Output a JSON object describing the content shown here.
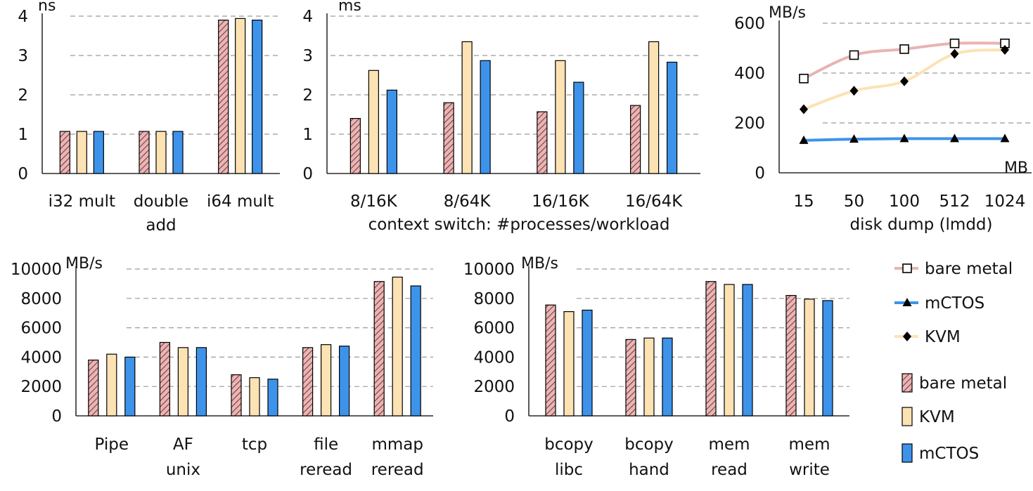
{
  "colors": {
    "bare_metal_bar": "#e9b5b5",
    "bare_metal_hatch": "#7a3b3b",
    "kvm_bar": "#fde2b4",
    "mctos_bar": "#3d93ea",
    "bare_metal_line": "#e8b4b4",
    "mctos_line": "#3d93ea",
    "kvm_line": "#fde2b4"
  },
  "legend": {
    "line_items": [
      {
        "label": "bare metal",
        "marker": "open-square",
        "color": "#e8b4b4"
      },
      {
        "label": "mCTOS",
        "marker": "triangle",
        "color": "#3d93ea"
      },
      {
        "label": "KVM",
        "marker": "diamond",
        "color": "#fde2b4"
      }
    ],
    "bar_items": [
      {
        "label": "bare metal",
        "style": "hatched"
      },
      {
        "label": "KVM",
        "style": "solid"
      },
      {
        "label": "mCTOS",
        "style": "solid"
      }
    ]
  },
  "chart_data": [
    {
      "type": "bar",
      "ylabel": "ns",
      "ylim": [
        0,
        4
      ],
      "yticks": [
        "0",
        "1",
        "2",
        "3",
        "4"
      ],
      "categories": [
        [
          "i32 mult"
        ],
        [
          "double",
          "add"
        ],
        [
          "i64 mult"
        ]
      ],
      "series": [
        {
          "values": [
            1.07,
            1.07,
            3.9
          ]
        },
        {
          "values": [
            1.07,
            1.07,
            3.94
          ]
        },
        {
          "values": [
            1.07,
            1.07,
            3.9
          ]
        }
      ],
      "grid": true
    },
    {
      "type": "bar",
      "ylabel": "ms",
      "xlabel": "context switch: #processes/workload",
      "ylim": [
        0,
        4
      ],
      "yticks": [
        "0",
        "1",
        "2",
        "3",
        "4"
      ],
      "categories": [
        [
          "8/16K"
        ],
        [
          "8/64K"
        ],
        [
          "16/16K"
        ],
        [
          "16/64K"
        ]
      ],
      "series": [
        {
          "values": [
            1.4,
            1.8,
            1.57,
            1.73
          ]
        },
        {
          "values": [
            2.62,
            3.35,
            2.87,
            3.35
          ]
        },
        {
          "values": [
            2.12,
            2.87,
            2.32,
            2.83
          ]
        }
      ],
      "grid": true
    },
    {
      "type": "line",
      "ylabel": "MB/s",
      "xlabel": "disk dump (lmdd)",
      "xunit": "MB",
      "ylim": [
        0,
        600
      ],
      "yticks": [
        "0",
        "200",
        "400",
        "600"
      ],
      "categories": [
        "15",
        "50",
        "100",
        "512",
        "1024"
      ],
      "series": [
        {
          "name": "bare metal",
          "values": [
            378,
            472,
            496,
            519,
            519
          ]
        },
        {
          "name": "mCTOS",
          "values": [
            130,
            135,
            137,
            137,
            137
          ]
        },
        {
          "name": "KVM",
          "values": [
            255,
            329,
            367,
            477,
            493
          ]
        }
      ],
      "grid": true
    },
    {
      "type": "bar",
      "ylabel": "MB/s",
      "ylim": [
        0,
        10000
      ],
      "yticks": [
        "0",
        "2000",
        "4000",
        "6000",
        "8000",
        "10000"
      ],
      "categories": [
        [
          "Pipe"
        ],
        [
          "AF",
          "unix"
        ],
        [
          "tcp"
        ],
        [
          "file",
          "reread"
        ],
        [
          "mmap",
          "reread"
        ]
      ],
      "series": [
        {
          "values": [
            3800,
            5000,
            2800,
            4650,
            9150
          ]
        },
        {
          "values": [
            4200,
            4650,
            2600,
            4850,
            9450
          ]
        },
        {
          "values": [
            4000,
            4650,
            2500,
            4750,
            8850
          ]
        }
      ],
      "grid": true
    },
    {
      "type": "bar",
      "ylabel": "MB/s",
      "ylim": [
        0,
        10000
      ],
      "yticks": [
        "0",
        "2000",
        "4000",
        "6000",
        "8000",
        "10000"
      ],
      "categories": [
        [
          "bcopy",
          "libc"
        ],
        [
          "bcopy",
          "hand"
        ],
        [
          "mem",
          "read"
        ],
        [
          "mem",
          "write"
        ]
      ],
      "series": [
        {
          "values": [
            7550,
            5200,
            9150,
            8200
          ]
        },
        {
          "values": [
            7100,
            5300,
            8950,
            7950
          ]
        },
        {
          "values": [
            7200,
            5300,
            8950,
            7850
          ]
        }
      ],
      "grid": true
    }
  ]
}
